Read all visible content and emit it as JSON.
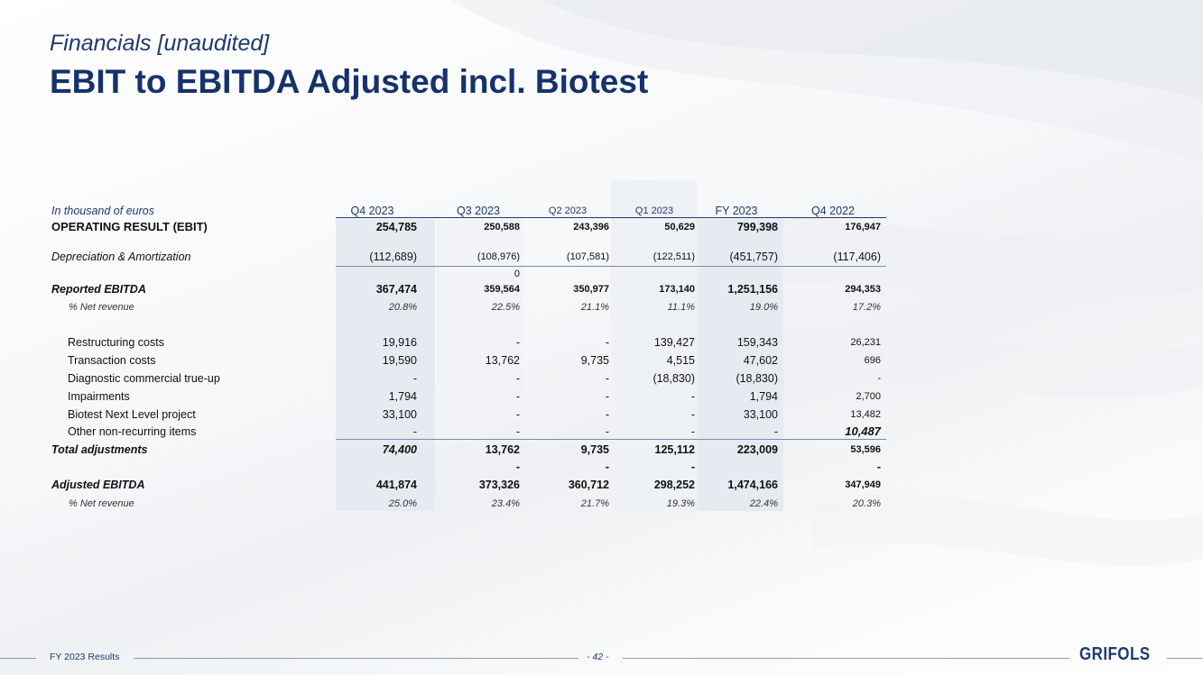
{
  "header": {
    "subtitle": "Financials [unaudited]",
    "title": "EBIT to EBITDA Adjusted incl. Biotest"
  },
  "table": {
    "unit_label": "In thousand of euros",
    "columns": [
      "Q4 2023",
      "Q3 2023",
      "Q2 2023",
      "Q1 2023",
      "FY 2023",
      "Q4 2022"
    ],
    "ebit": {
      "label": "OPERATING RESULT (EBIT)",
      "values": [
        "254,785",
        "250,588",
        "243,396",
        "50,629",
        "799,398",
        "176,947"
      ]
    },
    "da": {
      "label": "Depreciation & Amortization",
      "values": [
        "(112,689)",
        "(108,976)",
        "(107,581)",
        "(122,511)",
        "(451,757)",
        "(117,406)"
      ]
    },
    "zero_note": "0",
    "reported": {
      "label": "Reported EBITDA",
      "values": [
        "367,474",
        "359,564",
        "350,977",
        "173,140",
        "1,251,156",
        "294,353"
      ]
    },
    "reported_pct": {
      "label": "% Net revenue",
      "values": [
        "20.8%",
        "22.5%",
        "21.1%",
        "11.1%",
        "19.0%",
        "17.2%"
      ]
    },
    "adjustments": [
      {
        "label": "Restructuring costs",
        "values": [
          "19,916",
          "-",
          "-",
          "139,427",
          "159,343",
          "26,231"
        ]
      },
      {
        "label": "Transaction costs",
        "values": [
          "19,590",
          "13,762",
          "9,735",
          "4,515",
          "47,602",
          "696"
        ]
      },
      {
        "label": "Diagnostic commercial true-up",
        "values": [
          "-",
          "-",
          "-",
          "(18,830)",
          "(18,830)",
          "-"
        ]
      },
      {
        "label": "Impairments",
        "values": [
          "1,794",
          "-",
          "-",
          "-",
          "1,794",
          "2,700"
        ]
      },
      {
        "label": "Biotest Next Level project",
        "values": [
          "33,100",
          "-",
          "-",
          "-",
          "33,100",
          "13,482"
        ]
      },
      {
        "label": "Other non-recurring items",
        "values": [
          "-",
          "-",
          "-",
          "-",
          "-",
          "10,487"
        ]
      }
    ],
    "total": {
      "label": "Total adjustments",
      "values": [
        "74,400",
        "13,762",
        "9,735",
        "125,112",
        "223,009",
        "53,596"
      ]
    },
    "dash_row": [
      "-",
      "-",
      "-",
      "-"
    ],
    "adjusted": {
      "label": "Adjusted EBITDA",
      "values": [
        "441,874",
        "373,326",
        "360,712",
        "298,252",
        "1,474,166",
        "347,949"
      ]
    },
    "adjusted_pct": {
      "label": "% Net revenue",
      "values": [
        "25.0%",
        "23.4%",
        "21.7%",
        "19.3%",
        "22.4%",
        "20.3%"
      ]
    }
  },
  "footer": {
    "left": "FY 2023 Results",
    "page": "- 42 -",
    "logo": "GRIFOLS"
  }
}
